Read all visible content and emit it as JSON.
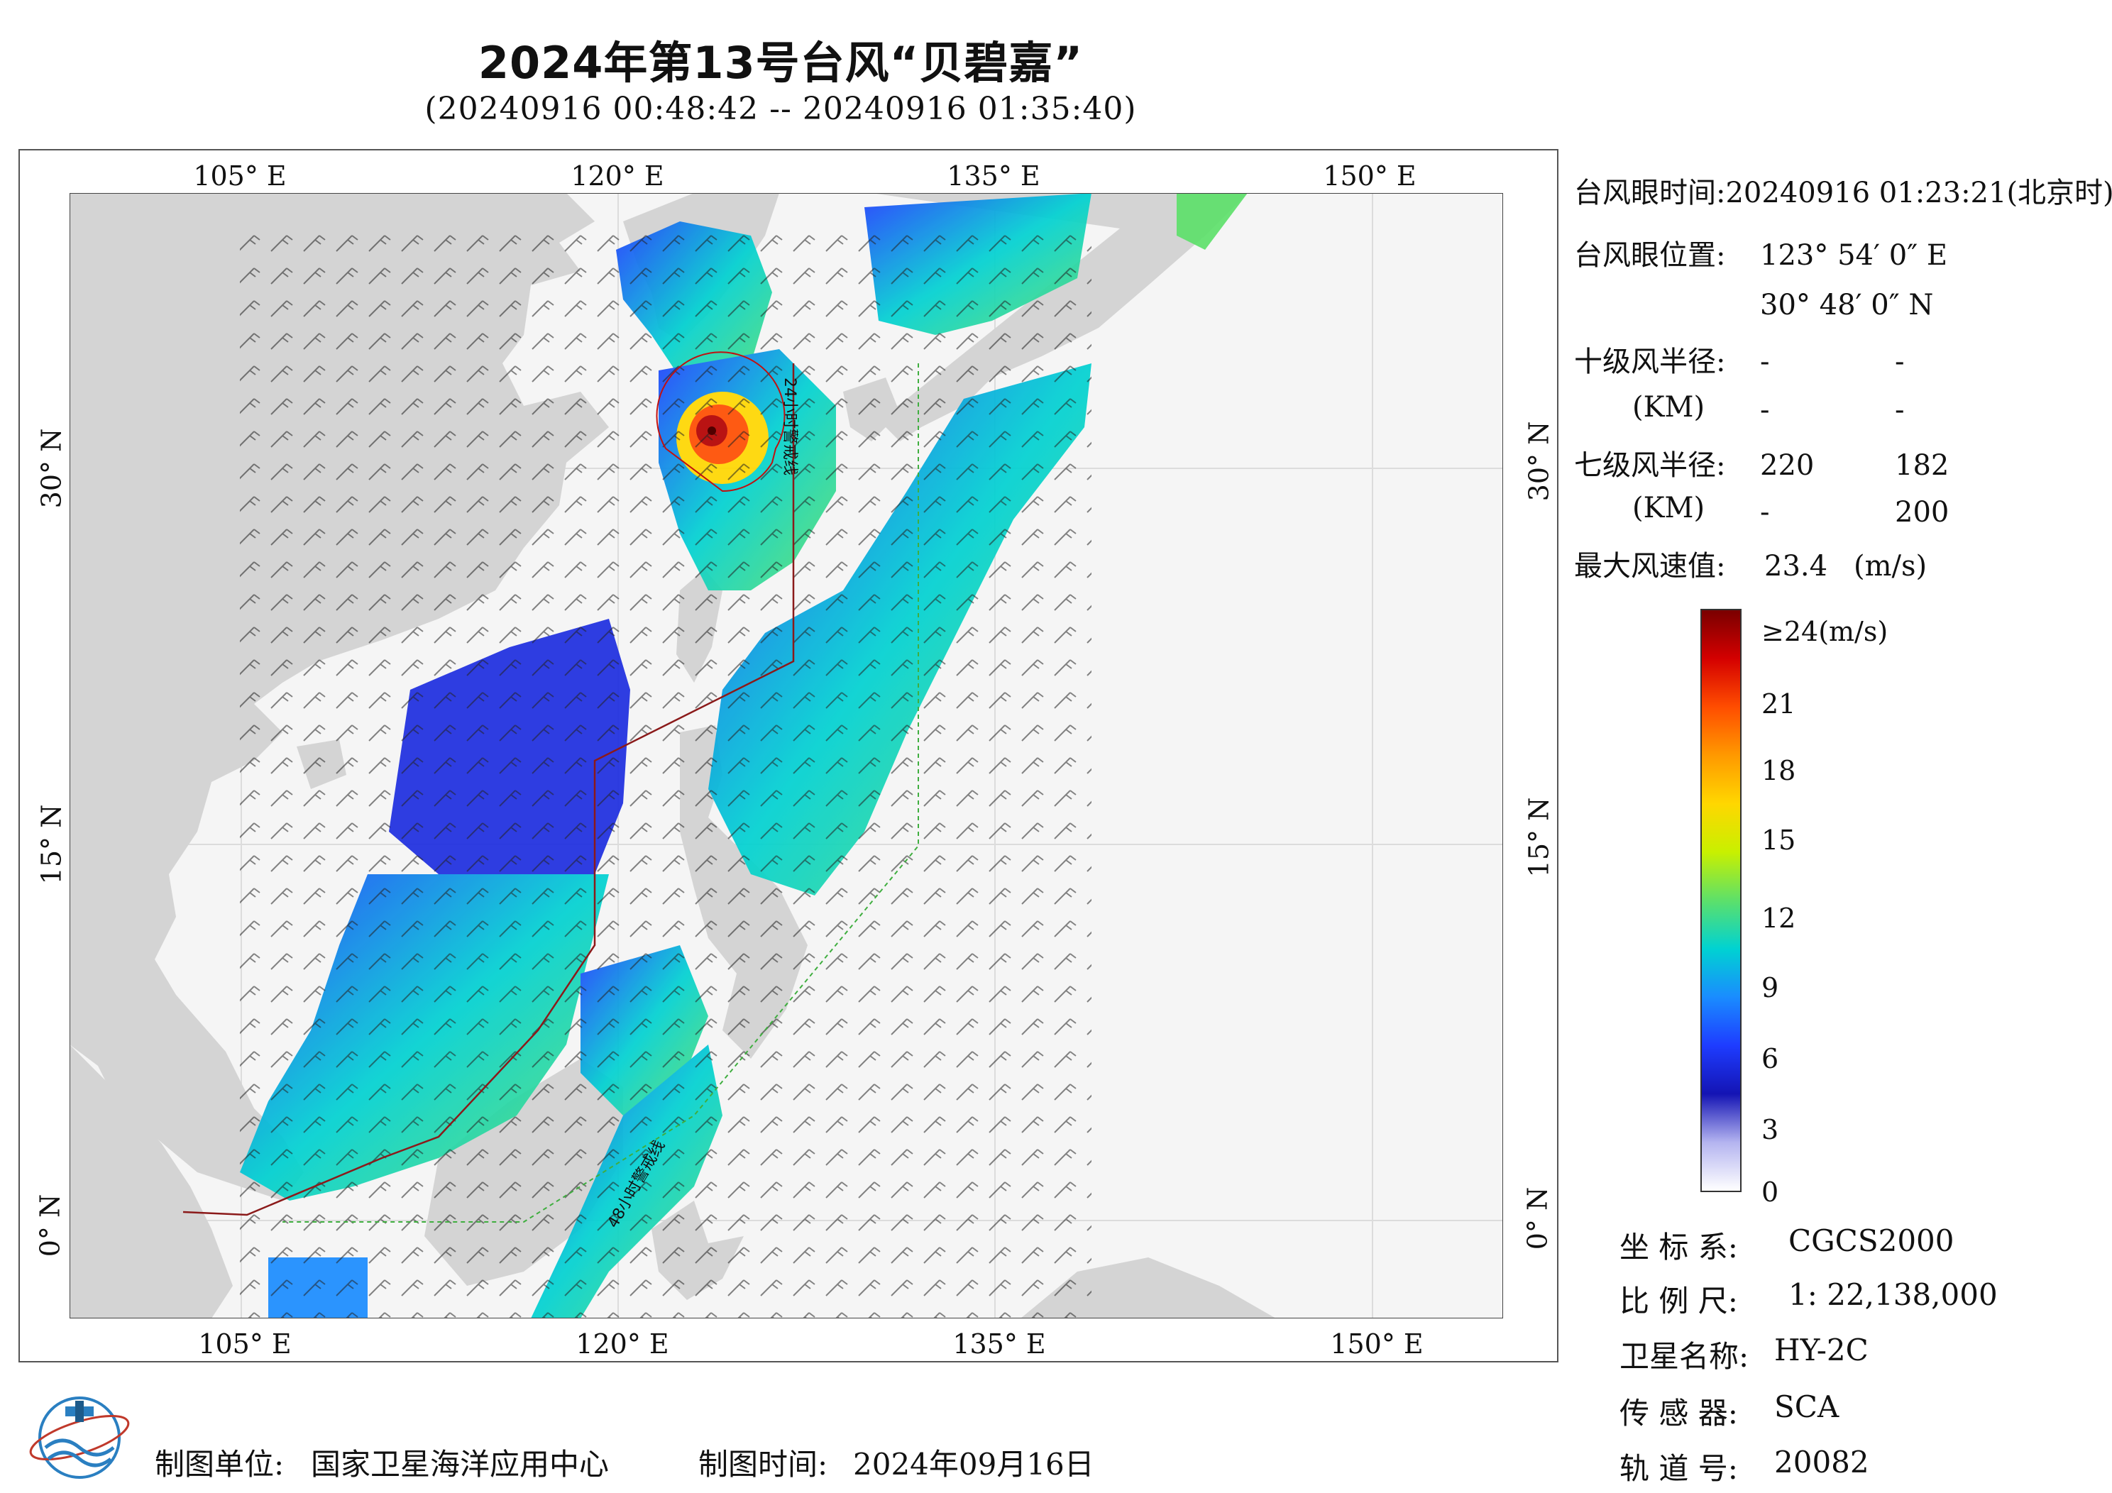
{
  "title": "2024年第13号台风“贝碧嘉”",
  "subtitle": "(20240916 00:48:42 -- 20240916 01:35:40)",
  "map": {
    "lon_labels": [
      "105° E",
      "120° E",
      "135° E",
      "150° E"
    ],
    "lat_labels": [
      "30° N",
      "15° N",
      "0° N"
    ],
    "track_label_24": "24小时警戒线",
    "track_label_48": "48小时警戒线",
    "colors": {
      "land": "#d4d4d4",
      "sea": "#f5f5f5",
      "frame": "#555555",
      "warning24": "#8b1a1a",
      "warning48": "#3fae3f"
    }
  },
  "info": {
    "eye_time_label": "台风眼时间:",
    "eye_time_value": "20240916 01:23:21(北京时)",
    "eye_pos_label": "台风眼位置:",
    "eye_lon": "123° 54′ 0″ E",
    "eye_lat": "30° 48′ 0″ N",
    "r10_label": "十级风半径:",
    "r10_unit": "(KM)",
    "r10_values": [
      "-",
      "-",
      "-",
      "-"
    ],
    "r7_label": "七级风半径:",
    "r7_unit": "(KM)",
    "r7_values": [
      "220",
      "182",
      "-",
      "200"
    ],
    "maxwind_label": "最大风速值:",
    "maxwind_value": "23.4",
    "maxwind_unit": "(m/s)"
  },
  "colorbar": {
    "labels": [
      "≥24(m/s)",
      "21",
      "18",
      "15",
      "12",
      "9",
      "6",
      "3",
      "0"
    ],
    "stops": [
      "#7a0000",
      "#d40000",
      "#ff4d00",
      "#ff9900",
      "#ffd700",
      "#c8f000",
      "#5de06a",
      "#00d2d2",
      "#1a8cff",
      "#1e3cff",
      "#1414b4",
      "#b4b4f0",
      "#ffffff"
    ]
  },
  "meta": {
    "coord_label": "坐 标 系:",
    "coord_value": "CGCS2000",
    "scale_label": "比 例 尺:",
    "scale_value": "1: 22,138,000",
    "sat_label": "卫星名称:",
    "sat_value": "HY-2C",
    "sensor_label": "传 感 器:",
    "sensor_value": "SCA",
    "orbit_label": "轨 道 号:",
    "orbit_value": "20082"
  },
  "footer": {
    "org_label": "制图单位:",
    "org_value": "国家卫星海洋应用中心",
    "date_label": "制图时间:",
    "date_value": "2024年09月16日"
  }
}
